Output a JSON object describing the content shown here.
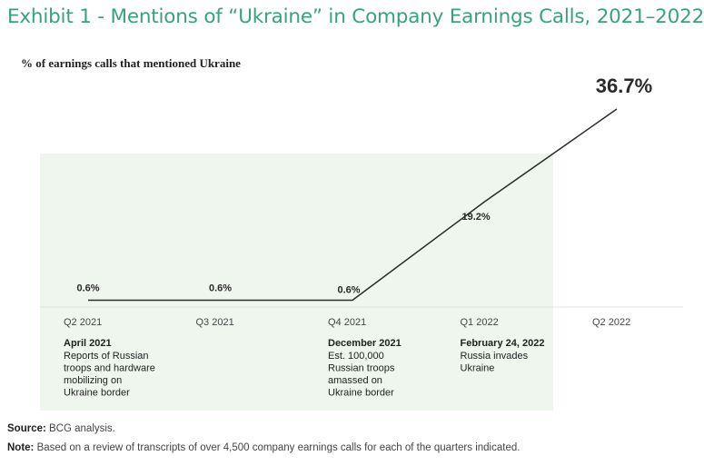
{
  "chart_data": {
    "type": "line",
    "title": "Exhibit 1 - Mentions of “Ukraine” in Company Earnings Calls, 2021–2022",
    "ylabel": "% of earnings calls that mentioned Ukraine",
    "xlabel": "",
    "categories": [
      "Q2 2021",
      "Q3 2021",
      "Q4 2021",
      "Q1 2022",
      "Q2 2022"
    ],
    "values": [
      0.6,
      0.6,
      0.6,
      19.2,
      36.7
    ],
    "value_labels": [
      "0.6%",
      "0.6%",
      "0.6%",
      "19.2%",
      "36.7%"
    ],
    "ylim": [
      0,
      36.7
    ],
    "grid": false,
    "line_color": "#2b2b2b",
    "highlight_color": "#eef6ee",
    "annotations": [
      {
        "category": "Q2 2021",
        "date": "April 2021",
        "text": [
          "Reports of Russian",
          "troops and hardware",
          "mobilizing on",
          "Ukraine border"
        ]
      },
      {
        "category": "Q4 2021",
        "date": "December 2021",
        "text": [
          "Est. 100,000",
          "Russian troops",
          "amassed on",
          "Ukraine border"
        ]
      },
      {
        "category": "Q1 2022",
        "date": "February 24, 2022",
        "text": [
          "Russia invades",
          "Ukraine"
        ]
      }
    ]
  },
  "footer": {
    "source_label": "Source:",
    "source_text": " BCG analysis.",
    "note_label": "Note:",
    "note_text": " Based on a review of transcripts of over 4,500 company earnings calls for each of the quarters indicated."
  }
}
